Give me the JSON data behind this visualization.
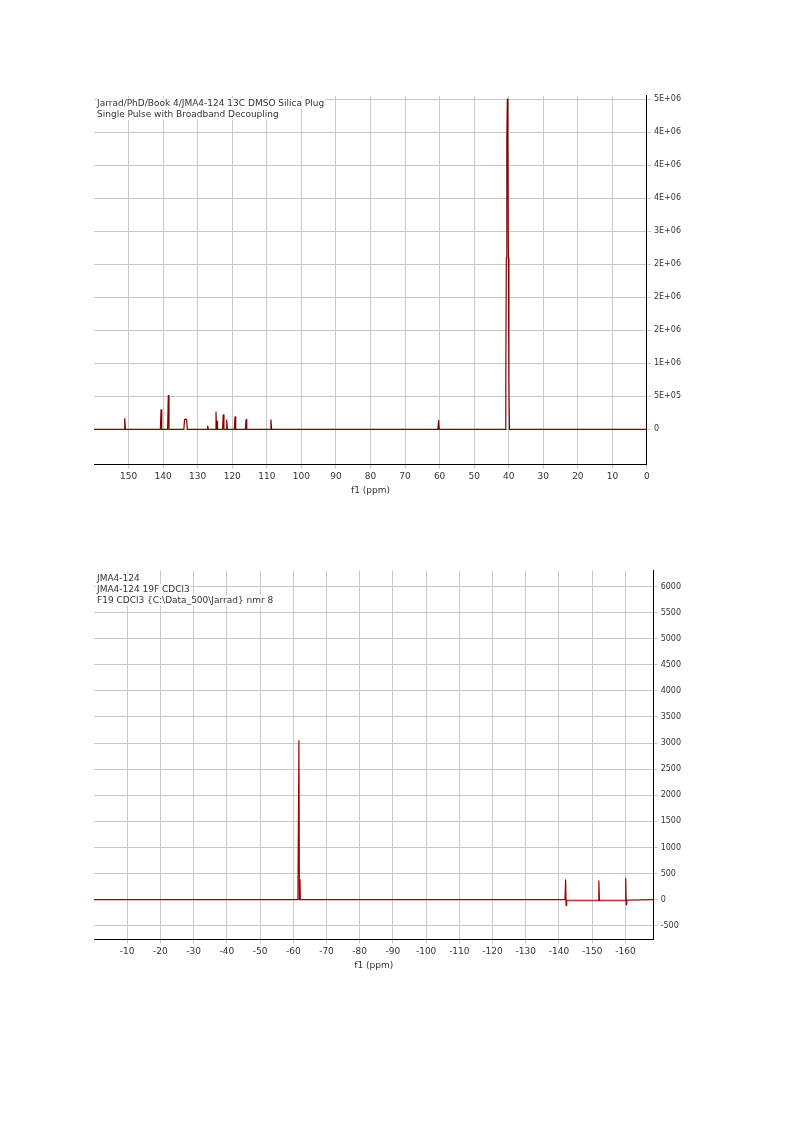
{
  "chart_data": [
    {
      "type": "line",
      "title": "Jarrad/PhD/Book 4/JMA4-124 13C DMSO Silica Plug",
      "subtitle": "Single Pulse with Broadband Decoupling",
      "xlabel": "f1 (ppm)",
      "grid": true,
      "legend": false,
      "marker": "none",
      "line_style": "solid",
      "xlim": [
        160,
        0
      ],
      "xticks": [
        150,
        140,
        130,
        120,
        110,
        100,
        90,
        80,
        70,
        60,
        50,
        40,
        30,
        20,
        10,
        0
      ],
      "ylim": [
        -530000,
        5050000
      ],
      "yticks": [
        {
          "value": 0,
          "label": "0"
        },
        {
          "value": 500000,
          "label": "5E+05"
        },
        {
          "value": 1000000,
          "label": "1E+06"
        },
        {
          "value": 1500000,
          "label": "2E+06"
        },
        {
          "value": 2000000,
          "label": "2E+06"
        },
        {
          "value": 2500000,
          "label": "2E+06"
        },
        {
          "value": 3000000,
          "label": "3E+06"
        },
        {
          "value": 3500000,
          "label": "4E+06"
        },
        {
          "value": 4000000,
          "label": "4E+06"
        },
        {
          "value": 4500000,
          "label": "4E+06"
        },
        {
          "value": 5000000,
          "label": "5E+06"
        }
      ],
      "series": [
        {
          "color": "#800000",
          "x": [
            160,
            151.3,
            151.1,
            150.9,
            140.8,
            140.6,
            140.4,
            138.7,
            138.5,
            138.3,
            134.0,
            133.8,
            133.5,
            133.2,
            133.0,
            127.3,
            127.1,
            126.9,
            124.9,
            124.7,
            124.55,
            124.4,
            124.25,
            122.8,
            122.6,
            122.4,
            121.8,
            121.6,
            121.4,
            119.4,
            119.2,
            119.0,
            116.2,
            116.0,
            115.8,
            109.0,
            108.8,
            108.6,
            60.5,
            60.3,
            60.1,
            41.0,
            40.85,
            40.7,
            40.55,
            40.4,
            40.25,
            40.1,
            39.95,
            39.8,
            0
          ],
          "values": [
            0,
            0,
            165000,
            0,
            0,
            296000,
            0,
            0,
            510000,
            0,
            0,
            150000,
            156000,
            150000,
            0,
            0,
            50000,
            0,
            0,
            260000,
            0,
            120000,
            0,
            0,
            220000,
            0,
            0,
            140000,
            0,
            0,
            190000,
            0,
            0,
            150000,
            0,
            0,
            145000,
            0,
            0,
            135000,
            0,
            0,
            750000,
            2600000,
            4400000,
            5000000,
            4400000,
            2600000,
            750000,
            0,
            0
          ]
        }
      ]
    },
    {
      "type": "line",
      "title": "JMA4-124",
      "subtitle": "JMA4-124 19F CDCl3",
      "annotations": [
        "F19 CDCl3 {C:\\Data_500\\Jarrad} nmr 8"
      ],
      "xlabel": "f1 (ppm)",
      "grid": true,
      "legend": false,
      "marker": "none",
      "line_style": "solid",
      "xlim": [
        0,
        -168.5
      ],
      "xticks": [
        -10,
        -20,
        -30,
        -40,
        -50,
        -60,
        -70,
        -80,
        -90,
        -100,
        -110,
        -120,
        -130,
        -140,
        -150,
        -160
      ],
      "ylim": [
        -760,
        6300
      ],
      "yticks": [
        -500,
        0,
        500,
        1000,
        1500,
        2000,
        2500,
        3000,
        3500,
        4000,
        4500,
        5000,
        5500,
        6000
      ],
      "series": [
        {
          "color": "#a00000",
          "x": [
            0,
            -61.4,
            -61.7,
            -61.85,
            -62.0,
            -62.15,
            -141.8,
            -142.0,
            -142.15,
            -142.3,
            -151.8,
            -152.0,
            -152.2,
            -159.9,
            -160.1,
            -160.25,
            -160.4,
            -168.5
          ],
          "values": [
            0,
            0,
            3050,
            0,
            390,
            0,
            0,
            380,
            -110,
            -20,
            -20,
            360,
            -20,
            -20,
            410,
            -95,
            -10,
            0
          ]
        }
      ]
    }
  ]
}
